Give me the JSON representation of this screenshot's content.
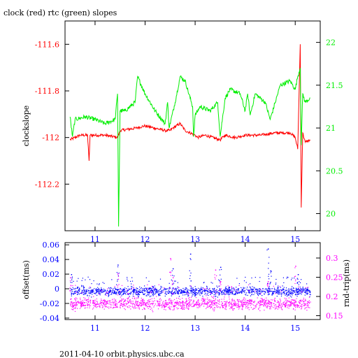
{
  "title": "clock (red) rtc (green) slopes",
  "footer": "2011-04-10  orbit.physics.ubc.ca",
  "colors": {
    "red": "#ff0000",
    "green": "#00ee00",
    "blue": "#0000ff",
    "magenta": "#ff00ff",
    "axis": "#000000"
  },
  "chart_data": [
    {
      "type": "line",
      "title": "clock (red) rtc (green) slopes",
      "xlim": [
        10.4,
        15.5
      ],
      "xticks": [
        "11",
        "12",
        "13",
        "14",
        "15"
      ],
      "ylabel": "clockslope",
      "ylim": [
        -112.4,
        -111.5
      ],
      "yticks": [
        "-111.6",
        "-111.8",
        "-112",
        "-112.2"
      ],
      "y2lim": [
        19.8,
        22.25
      ],
      "y2ticks": [
        "22",
        "21.5",
        "21",
        "20.5",
        "20"
      ],
      "series": [
        {
          "color": "red",
          "axis": "left",
          "x": [
            10.5,
            10.7,
            10.85,
            10.88,
            10.9,
            11.2,
            11.45,
            11.5,
            11.8,
            12.0,
            12.2,
            12.4,
            12.5,
            12.55,
            12.7,
            12.8,
            13.0,
            13.05,
            13.2,
            13.5,
            13.6,
            13.8,
            14.0,
            14.3,
            14.6,
            14.9,
            15.0,
            15.05,
            15.1,
            15.12,
            15.15,
            15.2,
            15.3
          ],
          "y": [
            -112.01,
            -111.99,
            -111.99,
            -112.1,
            -111.99,
            -111.99,
            -112.0,
            -111.97,
            -111.96,
            -111.95,
            -111.96,
            -111.97,
            -111.97,
            -111.96,
            -111.94,
            -111.97,
            -111.99,
            -112.0,
            -111.99,
            -112.01,
            -111.99,
            -112.0,
            -111.99,
            -111.99,
            -111.98,
            -111.98,
            -112.0,
            -112.05,
            -111.6,
            -112.3,
            -111.98,
            -112.02,
            -112.01
          ]
        },
        {
          "color": "green",
          "axis": "right",
          "x": [
            10.5,
            10.55,
            10.6,
            10.8,
            11.0,
            11.2,
            11.4,
            11.45,
            11.47,
            11.5,
            11.6,
            11.8,
            11.85,
            12.0,
            12.2,
            12.4,
            12.45,
            12.48,
            12.6,
            12.7,
            12.8,
            12.95,
            12.97,
            13.0,
            13.1,
            13.3,
            13.45,
            13.5,
            13.6,
            13.7,
            13.9,
            14.0,
            14.05,
            14.1,
            14.2,
            14.4,
            14.5,
            14.6,
            14.7,
            14.9,
            15.0,
            15.05,
            15.1,
            15.12,
            15.15,
            15.2,
            15.3
          ],
          "y": [
            21.13,
            20.9,
            21.1,
            21.13,
            21.1,
            21.05,
            21.1,
            21.4,
            19.85,
            21.2,
            21.2,
            21.3,
            21.6,
            21.4,
            21.2,
            21.05,
            21.3,
            21.0,
            21.3,
            21.6,
            21.55,
            21.25,
            20.9,
            21.15,
            21.25,
            21.2,
            21.3,
            20.9,
            21.35,
            21.45,
            21.4,
            21.2,
            21.4,
            21.15,
            21.4,
            21.3,
            21.1,
            21.3,
            21.5,
            21.55,
            21.45,
            21.6,
            21.7,
            20.8,
            21.4,
            21.3,
            21.35
          ]
        }
      ]
    },
    {
      "type": "scatter",
      "xlim": [
        10.4,
        15.5
      ],
      "xticks": [
        "11",
        "12",
        "13",
        "14",
        "15"
      ],
      "ylabel": "offset(ms)",
      "ylim": [
        -0.042,
        0.063
      ],
      "yticks": [
        "0.06",
        "0.04",
        "0.02",
        "0",
        "-0.02",
        "-0.04"
      ],
      "y2label": "rnd-trip(ms)",
      "y2lim": [
        0.14,
        0.34
      ],
      "y2ticks": [
        "0.3",
        "0.25",
        "0.2",
        "0.15"
      ],
      "series": [
        {
          "color": "blue",
          "axis": "left",
          "band": [
            -0.012,
            0.006
          ],
          "outliers": [
            [
              10.52,
              0.02
            ],
            [
              11.45,
              0.033
            ],
            [
              12.55,
              0.028
            ],
            [
              12.9,
              0.048
            ],
            [
              13.5,
              0.03
            ],
            [
              14.45,
              0.055
            ],
            [
              14.5,
              0.025
            ],
            [
              15.05,
              0.02
            ]
          ]
        },
        {
          "color": "magenta",
          "axis": "right",
          "band": [
            0.16,
            0.205
          ],
          "outliers": [
            [
              10.5,
              0.25
            ],
            [
              11.45,
              0.26
            ],
            [
              12.5,
              0.3
            ],
            [
              12.55,
              0.25
            ],
            [
              13.4,
              0.27
            ],
            [
              13.5,
              0.24
            ],
            [
              14.45,
              0.24
            ],
            [
              15.0,
              0.28
            ]
          ]
        }
      ]
    }
  ]
}
